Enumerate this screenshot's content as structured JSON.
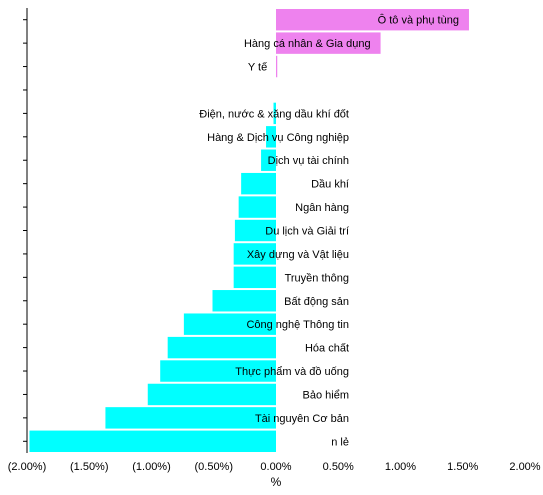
{
  "chart_data": {
    "type": "bar",
    "orientation": "horizontal",
    "categories": [
      "Ô tô và phụ tùng",
      "Hàng cá nhân & Gia dụng",
      "Y tế",
      "",
      "Điện, nước & xăng dầu khí đốt",
      "Hàng & Dịch vụ Công nghiệp",
      "Dịch vụ tài chính",
      "Dầu khí",
      "Ngân hàng",
      "Du lịch và Giải trí",
      "Xây dựng và Vật liệu",
      "Truyền thông",
      "Bất động sản",
      "Công nghệ Thông tin",
      "Hóa chất",
      "Thực phẩm và đồ uống",
      "Bảo hiểm",
      "Tài nguyên Cơ bản",
      "n lẻ"
    ],
    "values": [
      1.55,
      0.84,
      0.01,
      null,
      -0.02,
      -0.08,
      -0.12,
      -0.28,
      -0.3,
      -0.33,
      -0.34,
      -0.34,
      -0.51,
      -0.74,
      -0.87,
      -0.93,
      -1.03,
      -1.37,
      -1.98
    ],
    "xlabel": "%",
    "ylabel": "",
    "xlim": [
      -2.0,
      2.0
    ],
    "xticks": [
      -2.0,
      -1.5,
      -1.0,
      -0.5,
      0.0,
      0.5,
      1.0,
      1.5,
      2.0
    ],
    "xtick_labels": [
      "(2.00%)",
      "(1.50%)",
      "(1.00%)",
      "(0.50%)",
      "0.00%",
      "0.50%",
      "1.00%",
      "1.50%",
      "2.00%"
    ],
    "colors": {
      "positive": "#ee82ee",
      "negative": "#00ffff"
    },
    "grid": false,
    "legend": "none"
  }
}
